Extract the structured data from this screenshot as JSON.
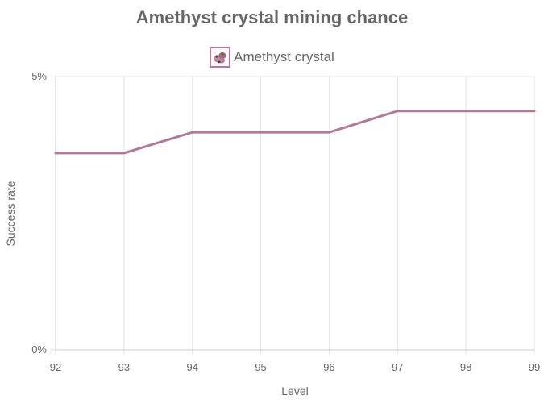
{
  "chart_data": {
    "type": "line",
    "title": "Amethyst crystal mining chance",
    "xlabel": "Level",
    "ylabel": "Success rate",
    "x": [
      92,
      93,
      94,
      95,
      96,
      97,
      98,
      99
    ],
    "series": [
      {
        "name": "Amethyst crystal",
        "values": [
          3.6,
          3.6,
          3.98,
          3.98,
          3.98,
          4.37,
          4.37,
          4.37
        ],
        "color": "#b07a99"
      }
    ],
    "ylim": [
      0,
      5
    ],
    "y_ticks": [
      "0%",
      "5%"
    ],
    "x_ticks": [
      "92",
      "93",
      "94",
      "95",
      "96",
      "97",
      "98",
      "99"
    ],
    "grid": true,
    "legend_position": "top",
    "legend_icon": "amethyst-crystal-icon"
  }
}
